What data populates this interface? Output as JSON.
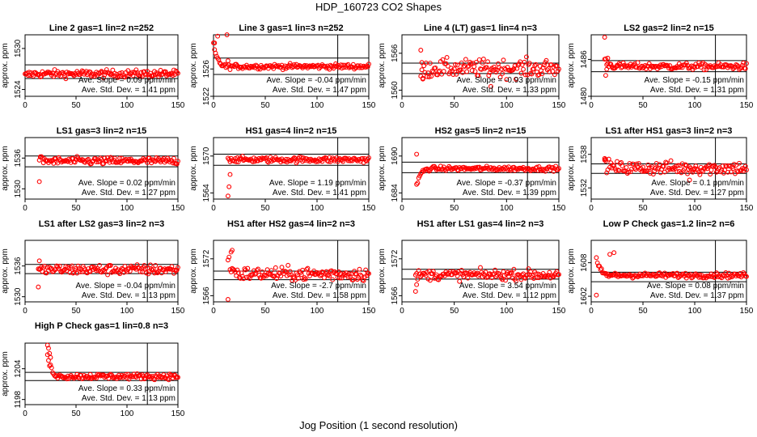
{
  "figure_title": "HDP_160723  CO2 Shapes",
  "x_axis_title": "Jog Position (1 second resolution)",
  "y_axis_label": "approx. ppm",
  "slope_label": "Ave. Slope =",
  "slope_unit": "ppm/min",
  "std_label": "Ave. Std. Dev. =",
  "std_unit": "ppm",
  "colors": {
    "points": "#ff0000",
    "axes": "#000000"
  },
  "chart_data": [
    {
      "type": "scatter",
      "title": "Line 2 gas=1 lin=2 n=252",
      "xlim": [
        0,
        150
      ],
      "xticks": [
        0,
        50,
        100,
        150
      ],
      "ylim": [
        1523,
        1532
      ],
      "yticks": [
        1524,
        1530
      ],
      "hlines": [
        1527.6,
        1525.6
      ],
      "vline": 120,
      "x_start": 0,
      "x_end": 150,
      "start_level": 1526.0,
      "level": 1526.3,
      "noise": 0.6,
      "spikes": [],
      "slope": "0.09",
      "std_dev": "1.41"
    },
    {
      "type": "scatter",
      "title": "Line 3 gas=1 lin=3 n=252",
      "xlim": [
        0,
        150
      ],
      "xticks": [
        0,
        50,
        100,
        150
      ],
      "ylim": [
        1522,
        1531
      ],
      "yticks": [
        1522,
        1526
      ],
      "hlines": [
        1527.6,
        1525.2
      ],
      "vline": 120,
      "x_start": 0,
      "x_end": 150,
      "start_level": 1529.5,
      "level": 1526.2,
      "noise": 0.4,
      "spikes": [
        [
          1,
          1529.8
        ],
        [
          4,
          1530.8
        ],
        [
          13,
          1531.0
        ],
        [
          14,
          1527.2
        ]
      ],
      "slope": "-0.04",
      "std_dev": "1.47"
    },
    {
      "type": "scatter",
      "title": "Line 4 (LT) gas=1 lin=4 n=3",
      "xlim": [
        0,
        150
      ],
      "xticks": [
        0,
        50,
        100,
        150
      ],
      "ylim": [
        1559,
        1569
      ],
      "yticks": [
        1560,
        1566
      ],
      "hlines": [
        1564.4,
        1562.7
      ],
      "vline": 120,
      "x_start": 18,
      "x_end": 150,
      "start_level": 1562.5,
      "level": 1563.6,
      "noise": 1.6,
      "spikes": [
        [
          18,
          1566.5
        ],
        [
          19,
          1564.5
        ],
        [
          20,
          1561.8
        ],
        [
          85,
          1560.6
        ]
      ],
      "slope": "-0.93",
      "std_dev": "1.33"
    },
    {
      "type": "scatter",
      "title": "LS2 gas=2 lin=2 n=15",
      "xlim": [
        0,
        150
      ],
      "xticks": [
        0,
        50,
        100,
        150
      ],
      "ylim": [
        1480,
        1490
      ],
      "yticks": [
        1480,
        1486
      ],
      "hlines": [
        1485.8,
        1484.0
      ],
      "vline": 120,
      "x_start": 13,
      "x_end": 150,
      "start_level": 1486.0,
      "level": 1484.8,
      "noise": 0.6,
      "spikes": [
        [
          13,
          1489.6
        ],
        [
          14,
          1483.4
        ],
        [
          15,
          1484.4
        ],
        [
          16,
          1486.2
        ]
      ],
      "slope": "-0.15",
      "std_dev": "1.31"
    },
    {
      "type": "scatter",
      "title": "LS1 gas=3 lin=2 n=15",
      "xlim": [
        0,
        150
      ],
      "xticks": [
        0,
        50,
        100,
        150
      ],
      "ylim": [
        1528,
        1540
      ],
      "yticks": [
        1530,
        1536
      ],
      "hlines": [
        1536.4,
        1534.3
      ],
      "vline": 120,
      "x_start": 14,
      "x_end": 150,
      "start_level": 1535.8,
      "level": 1535.4,
      "noise": 0.8,
      "spikes": [
        [
          14,
          1531.4
        ],
        [
          15,
          1536.2
        ]
      ],
      "slope": "0.02",
      "std_dev": "1.27"
    },
    {
      "type": "scatter",
      "title": "HS1 gas=4 lin=2 n=15",
      "xlim": [
        0,
        150
      ],
      "xticks": [
        0,
        50,
        100,
        150
      ],
      "ylim": [
        1563,
        1573
      ],
      "yticks": [
        1564,
        1570
      ],
      "hlines": [
        1570.3,
        1568.5
      ],
      "vline": 120,
      "x_start": 14,
      "x_end": 150,
      "start_level": 1569.6,
      "level": 1569.4,
      "noise": 0.5,
      "spikes": [
        [
          14,
          1563.5
        ],
        [
          15,
          1565.0
        ],
        [
          16,
          1567.0
        ]
      ],
      "slope": "1.19",
      "std_dev": "1.41"
    },
    {
      "type": "scatter",
      "title": "HS2 gas=5 lin=2 n=15",
      "xlim": [
        0,
        150
      ],
      "xticks": [
        0,
        50,
        100,
        150
      ],
      "ylim": [
        1683,
        1693
      ],
      "yticks": [
        1684,
        1690
      ],
      "hlines": [
        1689.0,
        1687.3
      ],
      "vline": 120,
      "x_start": 14,
      "x_end": 150,
      "start_level": 1685.2,
      "level": 1688.1,
      "noise": 0.4,
      "spikes": [
        [
          14,
          1690.3
        ]
      ],
      "slope": "-0.37",
      "std_dev": "1.39"
    },
    {
      "type": "scatter",
      "title": "LS1 after HS1 gas=3 lin=2 n=3",
      "xlim": [
        0,
        150
      ],
      "xticks": [
        0,
        50,
        100,
        150
      ],
      "ylim": [
        1530,
        1541
      ],
      "yticks": [
        1532,
        1538
      ],
      "hlines": [
        1536.3,
        1534.6
      ],
      "vline": 120,
      "x_start": 13,
      "x_end": 150,
      "start_level": 1536.6,
      "level": 1535.5,
      "noise": 1.3,
      "spikes": [
        [
          13,
          1537.0
        ],
        [
          14,
          1536.8
        ],
        [
          95,
          1533.4
        ]
      ],
      "slope": "0.1",
      "std_dev": "1.27"
    },
    {
      "type": "scatter",
      "title": "LS1 after LS2 gas=3 lin=2 n=3",
      "xlim": [
        0,
        150
      ],
      "xticks": [
        0,
        50,
        100,
        150
      ],
      "ylim": [
        1529,
        1541
      ],
      "yticks": [
        1530,
        1536
      ],
      "hlines": [
        1536.3,
        1534.5
      ],
      "vline": 120,
      "x_start": 13,
      "x_end": 150,
      "start_level": 1535.0,
      "level": 1535.3,
      "noise": 1.1,
      "spikes": [
        [
          13,
          1531.9
        ],
        [
          14,
          1537.0
        ]
      ],
      "slope": "-0.04",
      "std_dev": "1.13"
    },
    {
      "type": "scatter",
      "title": "HS1 after HS2 gas=4 lin=2 n=3",
      "xlim": [
        0,
        150
      ],
      "xticks": [
        0,
        50,
        100,
        150
      ],
      "ylim": [
        1565,
        1575
      ],
      "yticks": [
        1566,
        1572
      ],
      "hlines": [
        1570.0,
        1568.6
      ],
      "vline": 120,
      "x_start": 14,
      "x_end": 150,
      "start_level": 1572.0,
      "level": 1569.4,
      "noise": 1.2,
      "spikes": [
        [
          14,
          1565.4
        ],
        [
          17,
          1573.1
        ],
        [
          18,
          1573.4
        ]
      ],
      "slope": "-2.7",
      "std_dev": "1.58"
    },
    {
      "type": "scatter",
      "title": "HS1 after LS1 gas=4 lin=2 n=3",
      "xlim": [
        0,
        150
      ],
      "xticks": [
        0,
        50,
        100,
        150
      ],
      "ylim": [
        1565,
        1575
      ],
      "yticks": [
        1566,
        1572
      ],
      "hlines": [
        1570.3,
        1568.7
      ],
      "vline": 120,
      "x_start": 13,
      "x_end": 150,
      "start_level": 1569.2,
      "level": 1569.4,
      "noise": 0.9,
      "spikes": [
        [
          13,
          1566.7
        ],
        [
          14,
          1567.8
        ]
      ],
      "slope": "3.54",
      "std_dev": "1.12"
    },
    {
      "type": "scatter",
      "title": "Low P Check gas=1.2 lin=2 n=6",
      "xlim": [
        0,
        150
      ],
      "xticks": [
        0,
        50,
        100,
        150
      ],
      "ylim": [
        1601,
        1612
      ],
      "yticks": [
        1602,
        1608
      ],
      "hlines": [
        1606.3,
        1604.6
      ],
      "vline": 120,
      "x_start": 5,
      "x_end": 150,
      "start_level": 1608.6,
      "level": 1605.6,
      "noise": 0.5,
      "spikes": [
        [
          5,
          1602.2
        ],
        [
          18,
          1609.5
        ],
        [
          22,
          1609.8
        ]
      ],
      "slope": "0.08",
      "std_dev": "1.37"
    },
    {
      "type": "scatter",
      "title": "High P Check gas=1 lin=0.8 n=3",
      "xlim": [
        0,
        150
      ],
      "xticks": [
        0,
        50,
        100,
        150
      ],
      "ylim": [
        1197,
        1209
      ],
      "yticks": [
        1198,
        1204
      ],
      "hlines": [
        1203.3,
        1201.7
      ],
      "vline": 120,
      "x_start": 22,
      "x_end": 150,
      "start_level": 1206.5,
      "level": 1202.3,
      "noise": 0.6,
      "spikes": [
        [
          22,
          1208.6
        ],
        [
          23,
          1208.0
        ],
        [
          24,
          1207.0
        ],
        [
          25,
          1206.2
        ]
      ],
      "slope": "0.33",
      "std_dev": "1.13"
    }
  ]
}
